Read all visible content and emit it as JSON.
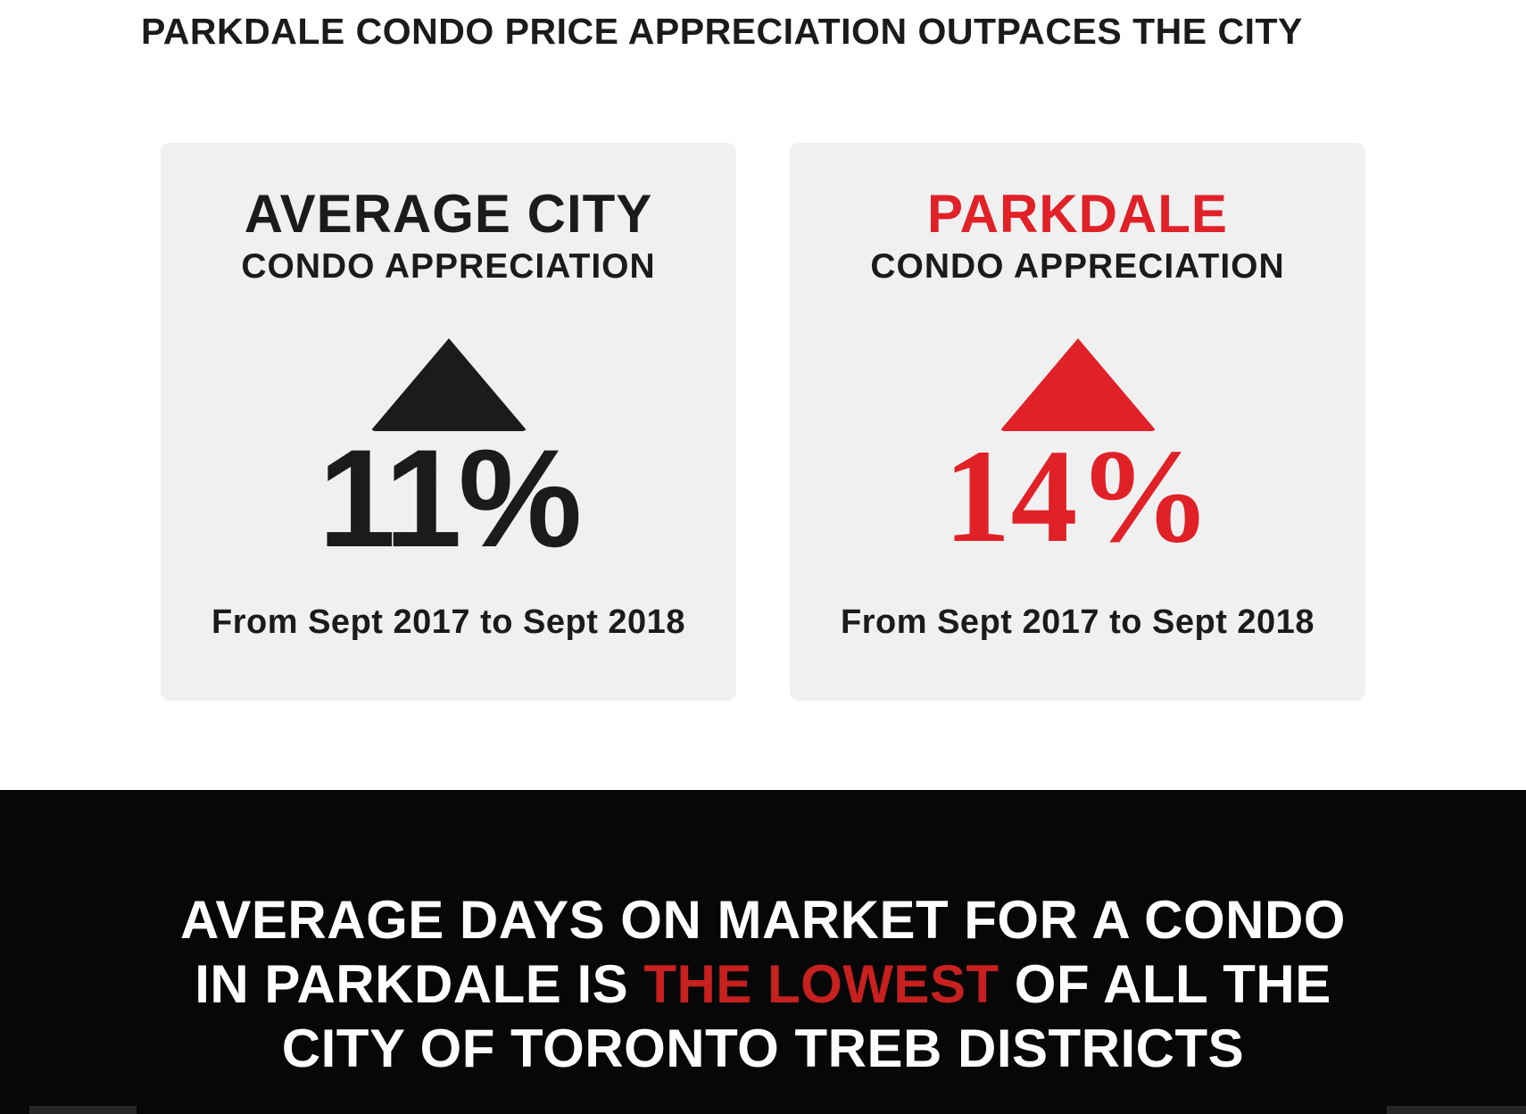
{
  "title": "PARKDALE CONDO PRICE APPRECIATION OUTPACES THE CITY",
  "colors": {
    "accent_red": "#e02127",
    "banner_red": "#c6201f",
    "card_bg": "#f0f0f1",
    "banner_bg": "#070707",
    "text_dark": "#1b1b1b",
    "text_light": "#fdfdfd"
  },
  "cards": [
    {
      "id": "average-city",
      "title_line1": "AVERAGE CITY",
      "title_line2": "CONDO APPRECIATION",
      "value": "11%",
      "period": "From Sept 2017 to Sept 2018",
      "accent": "#1b1b1b",
      "icon": "up-triangle-icon"
    },
    {
      "id": "parkdale",
      "title_line1": "PARKDALE",
      "title_line2": "CONDO APPRECIATION",
      "value": "14%",
      "period": "From Sept 2017 to Sept 2018",
      "accent": "#e02127",
      "icon": "up-triangle-icon"
    }
  ],
  "banner": {
    "line1": "AVERAGE DAYS ON MARKET FOR A CONDO",
    "line2_prefix": "IN PARKDALE IS ",
    "line2_highlight": "THE LOWEST",
    "line2_suffix": " OF ALL THE",
    "line3": "CITY OF TORONTO TREB DISTRICTS"
  },
  "chart_data": {
    "type": "table",
    "title": "PARKDALE CONDO PRICE APPRECIATION OUTPACES THE CITY",
    "categories": [
      "Average City Condo Appreciation",
      "Parkdale Condo Appreciation"
    ],
    "values": [
      11,
      14
    ],
    "unit": "%",
    "period": "From Sept 2017 to Sept 2018",
    "annotations": [
      "Average days on market for a condo in Parkdale is the lowest of all the City of Toronto TREB districts"
    ],
    "legend_position": "none",
    "grid": false
  }
}
